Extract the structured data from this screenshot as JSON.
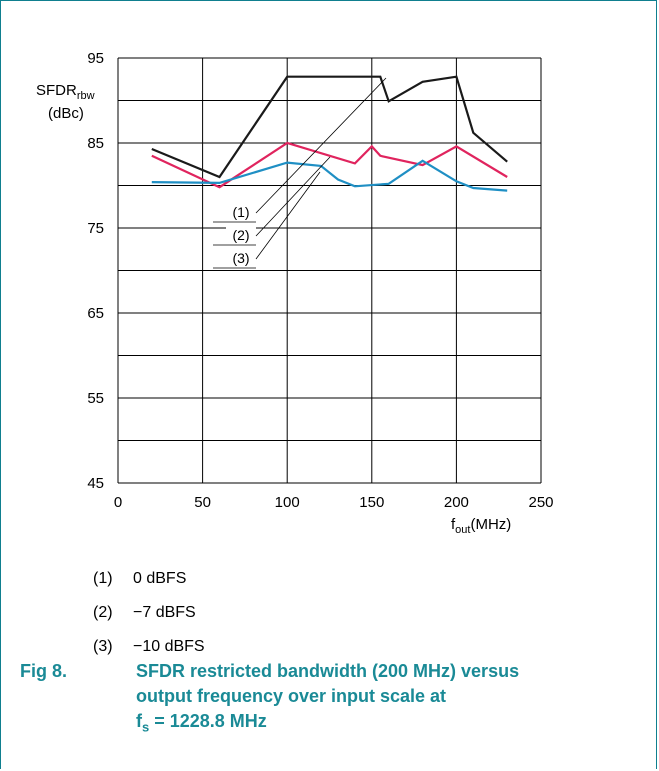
{
  "chart_data": {
    "type": "line",
    "ylabel_main": "SFDR",
    "ylabel_sub": "rbw",
    "ylabel_unit": "(dBc)",
    "xlabel_main": "f",
    "xlabel_sub": "out",
    "xlabel_unit": "(MHz)",
    "xlim": [
      0,
      250
    ],
    "ylim": [
      45,
      95
    ],
    "xticks": [
      0,
      50,
      100,
      150,
      200,
      250
    ],
    "yticks": [
      45,
      55,
      65,
      75,
      85,
      95
    ],
    "grid": true,
    "series": [
      {
        "name": "(1)",
        "color": "#1a1a1a",
        "x": [
          20,
          60,
          100,
          155,
          160,
          180,
          200,
          210,
          230
        ],
        "y": [
          84.3,
          81.0,
          92.8,
          92.8,
          89.9,
          92.2,
          92.8,
          86.2,
          82.8
        ]
      },
      {
        "name": "(2)",
        "color": "#e0245e",
        "x": [
          20,
          60,
          100,
          140,
          150,
          155,
          180,
          200,
          230
        ],
        "y": [
          83.5,
          79.8,
          85.0,
          82.6,
          84.6,
          83.5,
          82.4,
          84.6,
          81.0
        ]
      },
      {
        "name": "(3)",
        "color": "#1f8fc4",
        "x": [
          20,
          60,
          100,
          120,
          130,
          140,
          160,
          180,
          200,
          210,
          230
        ],
        "y": [
          80.4,
          80.3,
          82.7,
          82.3,
          80.7,
          79.9,
          80.2,
          82.9,
          80.5,
          79.7,
          79.4
        ]
      }
    ]
  },
  "legend": [
    {
      "num": "(1)",
      "label": "0 dBFS"
    },
    {
      "num": "(2)",
      "label": "−7 dBFS"
    },
    {
      "num": "(3)",
      "label": "−10 dBFS"
    }
  ],
  "caption": {
    "fig": "Fig 8.",
    "line1": "SFDR restricted bandwidth (200 MHz) versus",
    "line2": "output frequency over input scale at",
    "line3_main": "f",
    "line3_sub": "s",
    "line3_rest": " = 1228.8 MHz"
  },
  "colors": {
    "frame": "#0f7f8f",
    "caption": "#1a8a96"
  }
}
